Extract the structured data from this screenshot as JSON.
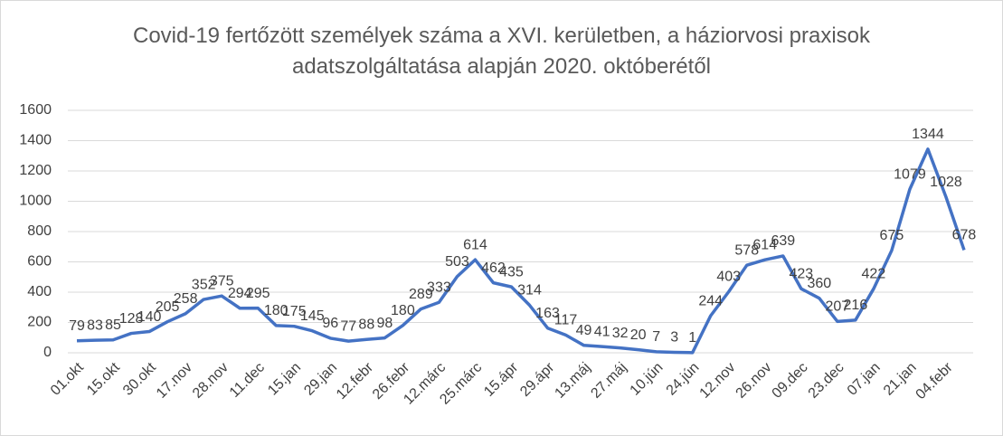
{
  "chart_data": {
    "type": "line",
    "title": "Covid-19 fertőzött személyek száma a XVI. kerületben, a háziorvosi praxisok adatszolgáltatása alapján 2020. októberétől",
    "categories": [
      "01.okt",
      null,
      "15.okt",
      null,
      "30.okt",
      null,
      "17.nov",
      null,
      "28.nov",
      null,
      "11.dec",
      null,
      "15.jan",
      null,
      "29.jan",
      null,
      "12.febr",
      null,
      "26.febr",
      null,
      "12.márc",
      null,
      "25.márc",
      null,
      "15.ápr",
      null,
      "29.ápr",
      null,
      "13.máj",
      null,
      "27.máj",
      null,
      "10.jún",
      null,
      "24.jún",
      null,
      "12.nov",
      null,
      "26.nov",
      null,
      "09.dec",
      null,
      "23.dec",
      null,
      "07.jan",
      null,
      "21.jan",
      null,
      "04.febr",
      null
    ],
    "series": [
      {
        "color": "#4472c4",
        "values": [
          79,
          83,
          85,
          128,
          140,
          205,
          258,
          352,
          375,
          294,
          295,
          180,
          175,
          145,
          96,
          77,
          88,
          98,
          180,
          289,
          333,
          503,
          614,
          462,
          435,
          314,
          163,
          117,
          49,
          41,
          32,
          20,
          7,
          3,
          1,
          244,
          403,
          578,
          614,
          639,
          423,
          360,
          207,
          216,
          422,
          675,
          1079,
          1344,
          1028,
          678
        ]
      }
    ],
    "ylim": [
      0,
      1600
    ],
    "yticks": [
      0,
      200,
      400,
      600,
      800,
      1000,
      1200,
      1400,
      1600
    ],
    "grid": true
  }
}
